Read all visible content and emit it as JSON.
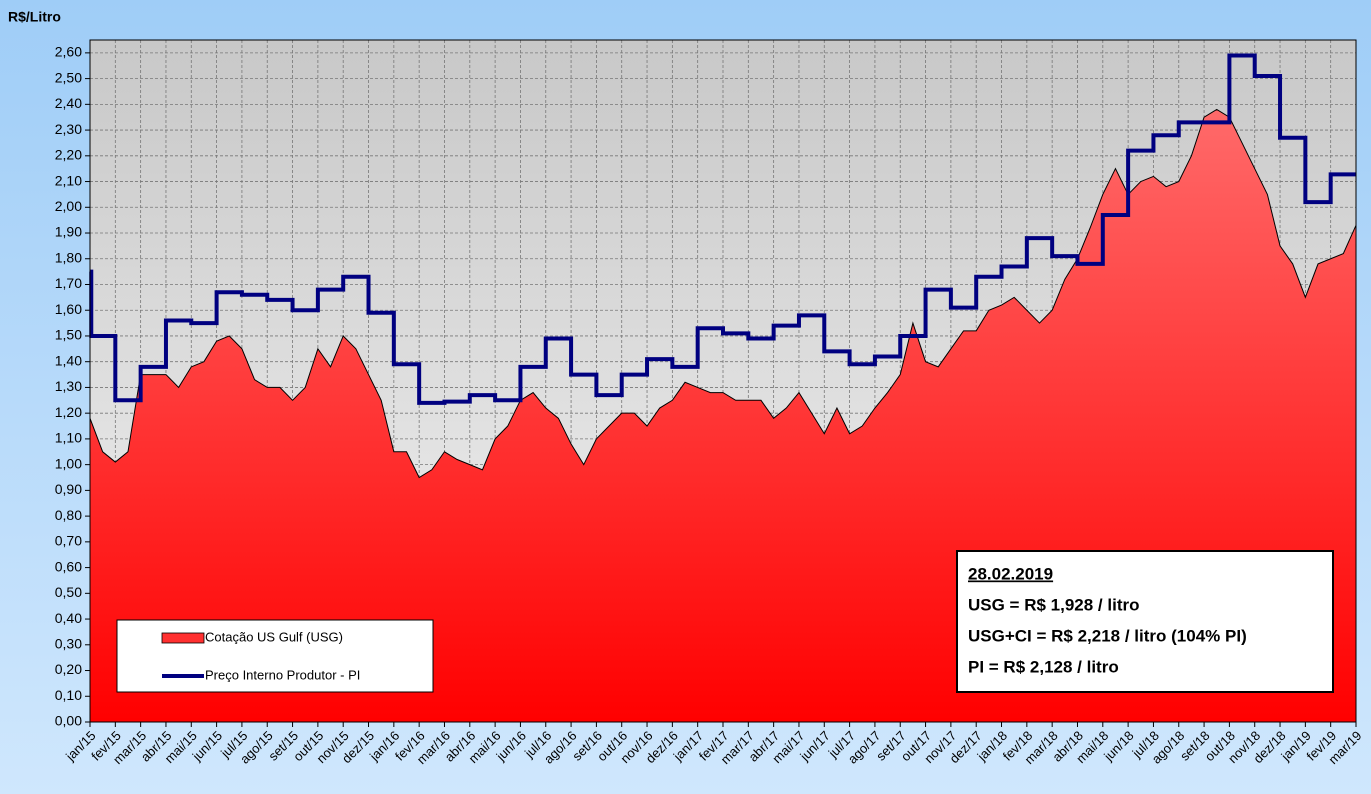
{
  "chart_data": {
    "type": "area-step",
    "y_label": "R$/Litro",
    "xlim": [
      0,
      50
    ],
    "ylim": [
      0,
      2.65
    ],
    "grid": true,
    "legend": "lower left",
    "xticks": [
      {
        "value": 0,
        "label": "jan/15"
      },
      {
        "value": 1,
        "label": "fev/15"
      },
      {
        "value": 2,
        "label": "mar/15"
      },
      {
        "value": 3,
        "label": "abr/15"
      },
      {
        "value": 4,
        "label": "mai/15"
      },
      {
        "value": 5,
        "label": "jun/15"
      },
      {
        "value": 6,
        "label": "jul/15"
      },
      {
        "value": 7,
        "label": "ago/15"
      },
      {
        "value": 8,
        "label": "set/15"
      },
      {
        "value": 9,
        "label": "out/15"
      },
      {
        "value": 10,
        "label": "nov/15"
      },
      {
        "value": 11,
        "label": "dez/15"
      },
      {
        "value": 12,
        "label": "jan/16"
      },
      {
        "value": 13,
        "label": "fev/16"
      },
      {
        "value": 14,
        "label": "mar/16"
      },
      {
        "value": 15,
        "label": "abr/16"
      },
      {
        "value": 16,
        "label": "mai/16"
      },
      {
        "value": 17,
        "label": "jun/16"
      },
      {
        "value": 18,
        "label": "jul/16"
      },
      {
        "value": 19,
        "label": "ago/16"
      },
      {
        "value": 20,
        "label": "set/16"
      },
      {
        "value": 21,
        "label": "out/16"
      },
      {
        "value": 22,
        "label": "nov/16"
      },
      {
        "value": 23,
        "label": "dez/16"
      },
      {
        "value": 24,
        "label": "jan/17"
      },
      {
        "value": 25,
        "label": "fev/17"
      },
      {
        "value": 26,
        "label": "mar/17"
      },
      {
        "value": 27,
        "label": "abr/17"
      },
      {
        "value": 28,
        "label": "mai/17"
      },
      {
        "value": 29,
        "label": "jun/17"
      },
      {
        "value": 30,
        "label": "jul/17"
      },
      {
        "value": 31,
        "label": "ago/17"
      },
      {
        "value": 32,
        "label": "set/17"
      },
      {
        "value": 33,
        "label": "out/17"
      },
      {
        "value": 34,
        "label": "nov/17"
      },
      {
        "value": 35,
        "label": "dez/17"
      },
      {
        "value": 36,
        "label": "jan/18"
      },
      {
        "value": 37,
        "label": "fev/18"
      },
      {
        "value": 38,
        "label": "mar/18"
      },
      {
        "value": 39,
        "label": "abr/18"
      },
      {
        "value": 40,
        "label": "mai/18"
      },
      {
        "value": 41,
        "label": "jun/18"
      },
      {
        "value": 42,
        "label": "jul/18"
      },
      {
        "value": 43,
        "label": "ago/18"
      },
      {
        "value": 44,
        "label": "set/18"
      },
      {
        "value": 45,
        "label": "out/18"
      },
      {
        "value": 46,
        "label": "nov/18"
      },
      {
        "value": 47,
        "label": "dez/18"
      },
      {
        "value": 48,
        "label": "jan/19"
      },
      {
        "value": 49,
        "label": "fev/19"
      },
      {
        "value": 50,
        "label": "mar/19"
      }
    ],
    "yticks": [
      {
        "value": 0,
        "label": "0,00"
      },
      {
        "value": 0.1,
        "label": "0,10"
      },
      {
        "value": 0.2,
        "label": "0,20"
      },
      {
        "value": 0.3,
        "label": "0,30"
      },
      {
        "value": 0.4,
        "label": "0,40"
      },
      {
        "value": 0.5,
        "label": "0,50"
      },
      {
        "value": 0.6,
        "label": "0,60"
      },
      {
        "value": 0.7,
        "label": "0,70"
      },
      {
        "value": 0.8,
        "label": "0,80"
      },
      {
        "value": 0.9,
        "label": "0,90"
      },
      {
        "value": 1.0,
        "label": "1,00"
      },
      {
        "value": 1.1,
        "label": "1,10"
      },
      {
        "value": 1.2,
        "label": "1,20"
      },
      {
        "value": 1.3,
        "label": "1,30"
      },
      {
        "value": 1.4,
        "label": "1,40"
      },
      {
        "value": 1.5,
        "label": "1,50"
      },
      {
        "value": 1.6,
        "label": "1,60"
      },
      {
        "value": 1.7,
        "label": "1,70"
      },
      {
        "value": 1.8,
        "label": "1,80"
      },
      {
        "value": 1.9,
        "label": "1,90"
      },
      {
        "value": 2.0,
        "label": "2,00"
      },
      {
        "value": 2.1,
        "label": "2,10"
      },
      {
        "value": 2.2,
        "label": "2,20"
      },
      {
        "value": 2.3,
        "label": "2,30"
      },
      {
        "value": 2.4,
        "label": "2,40"
      },
      {
        "value": 2.5,
        "label": "2,50"
      },
      {
        "value": 2.6,
        "label": "2,60"
      }
    ],
    "series": [
      {
        "name": "Cotação US Gulf (USG)",
        "kind": "area",
        "color": "#ff3030",
        "x": [
          0,
          0.5,
          1,
          1.5,
          2,
          2.5,
          3,
          3.5,
          4,
          4.5,
          5,
          5.5,
          6,
          6.5,
          7,
          7.5,
          8,
          8.5,
          9,
          9.5,
          10,
          10.5,
          11,
          11.5,
          12,
          12.5,
          13,
          13.5,
          14,
          14.5,
          15,
          15.5,
          16,
          16.5,
          17,
          17.5,
          18,
          18.5,
          19,
          19.5,
          20,
          20.5,
          21,
          21.5,
          22,
          22.5,
          23,
          23.5,
          24,
          24.5,
          25,
          25.5,
          26,
          26.5,
          27,
          27.5,
          28,
          28.5,
          29,
          29.5,
          30,
          30.5,
          31,
          31.5,
          32,
          32.5,
          33,
          33.5,
          34,
          34.5,
          35,
          35.5,
          36,
          36.5,
          37,
          37.5,
          38,
          38.5,
          39,
          39.5,
          40,
          40.5,
          41,
          41.5,
          42,
          42.5,
          43,
          43.5,
          44,
          44.5,
          45,
          45.5,
          46,
          46.5,
          47,
          47.5,
          48,
          48.5,
          49,
          49.5,
          50
        ],
        "values": [
          1.18,
          1.05,
          1.01,
          1.05,
          1.35,
          1.35,
          1.35,
          1.3,
          1.38,
          1.4,
          1.48,
          1.5,
          1.45,
          1.33,
          1.3,
          1.3,
          1.25,
          1.3,
          1.45,
          1.38,
          1.5,
          1.45,
          1.35,
          1.25,
          1.05,
          1.05,
          0.95,
          0.98,
          1.05,
          1.02,
          1.0,
          0.98,
          1.1,
          1.15,
          1.25,
          1.28,
          1.22,
          1.18,
          1.08,
          1.0,
          1.1,
          1.15,
          1.2,
          1.2,
          1.15,
          1.22,
          1.25,
          1.32,
          1.3,
          1.28,
          1.28,
          1.25,
          1.25,
          1.25,
          1.18,
          1.22,
          1.28,
          1.2,
          1.12,
          1.22,
          1.12,
          1.15,
          1.22,
          1.28,
          1.35,
          1.55,
          1.4,
          1.38,
          1.45,
          1.52,
          1.52,
          1.6,
          1.62,
          1.65,
          1.6,
          1.55,
          1.6,
          1.72,
          1.8,
          1.92,
          2.05,
          2.15,
          2.05,
          2.1,
          2.12,
          2.08,
          2.1,
          2.2,
          2.35,
          2.38,
          2.35,
          2.25,
          2.15,
          2.05,
          1.85,
          1.78,
          1.65,
          1.78,
          1.8,
          1.82,
          1.93
        ]
      },
      {
        "name": "Preço Interno Produtor - PI",
        "kind": "step",
        "color": "#000080",
        "x": [
          0,
          0.05,
          1,
          2,
          3,
          4,
          5,
          6,
          7,
          8,
          9,
          10,
          11,
          12,
          13,
          14,
          15,
          16,
          17,
          18,
          19,
          20,
          21,
          22,
          23,
          24,
          25,
          26,
          27,
          28,
          29,
          30,
          31,
          32,
          33,
          34,
          35,
          36,
          37,
          38,
          39,
          40,
          41,
          42,
          43,
          44,
          45,
          46,
          47,
          48,
          49
        ],
        "values": [
          1.75,
          1.5,
          1.25,
          1.38,
          1.56,
          1.55,
          1.67,
          1.66,
          1.64,
          1.6,
          1.68,
          1.73,
          1.59,
          1.39,
          1.24,
          1.245,
          1.27,
          1.25,
          1.38,
          1.49,
          1.35,
          1.27,
          1.35,
          1.41,
          1.38,
          1.53,
          1.51,
          1.49,
          1.54,
          1.58,
          1.44,
          1.39,
          1.42,
          1.5,
          1.68,
          1.61,
          1.73,
          1.77,
          1.88,
          1.81,
          1.78,
          1.97,
          2.22,
          2.28,
          2.33,
          2.33,
          2.59,
          2.51,
          2.27,
          2.02,
          2.128
        ]
      }
    ],
    "annotations": [
      "28.02.2019",
      "USG = R$ 1,928 / litro",
      "USG+CI = R$ 2,218 / litro (104% PI)",
      "PI = R$ 2,128 / litro"
    ]
  }
}
